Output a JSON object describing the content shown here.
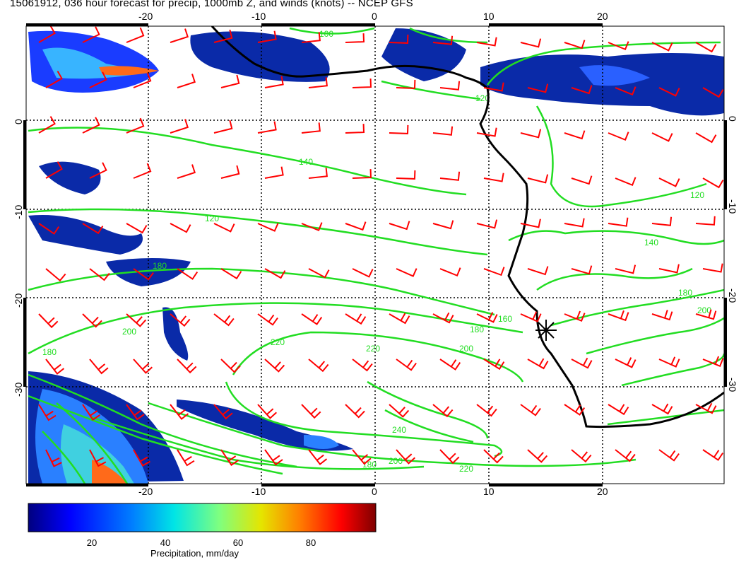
{
  "title": "15061912, 036 hour forecast for precip, 1000mb Z, and winds (knots) -- NCEP GFS",
  "axes": {
    "x_ticks": [
      "-20",
      "-10",
      "0",
      "10",
      "20"
    ],
    "y_ticks": [
      "0",
      "-10",
      "-20",
      "-30"
    ]
  },
  "contour_labels": [
    "100",
    "120",
    "140",
    "160",
    "180",
    "200",
    "220",
    "240"
  ],
  "colorbar": {
    "caption": "Precipitation, mm/day",
    "ticks": [
      "20",
      "40",
      "60",
      "80"
    ],
    "colors": [
      "#00007f",
      "#0000ff",
      "#007fff",
      "#00e5e5",
      "#7fff7f",
      "#e5e500",
      "#ff7f00",
      "#ff0000",
      "#7f0000"
    ]
  },
  "colors": {
    "contour": "#22dd22",
    "wind_barb": "#ff0000",
    "coastline": "#000000",
    "gridline": "#000000"
  },
  "marker": "location-star"
}
